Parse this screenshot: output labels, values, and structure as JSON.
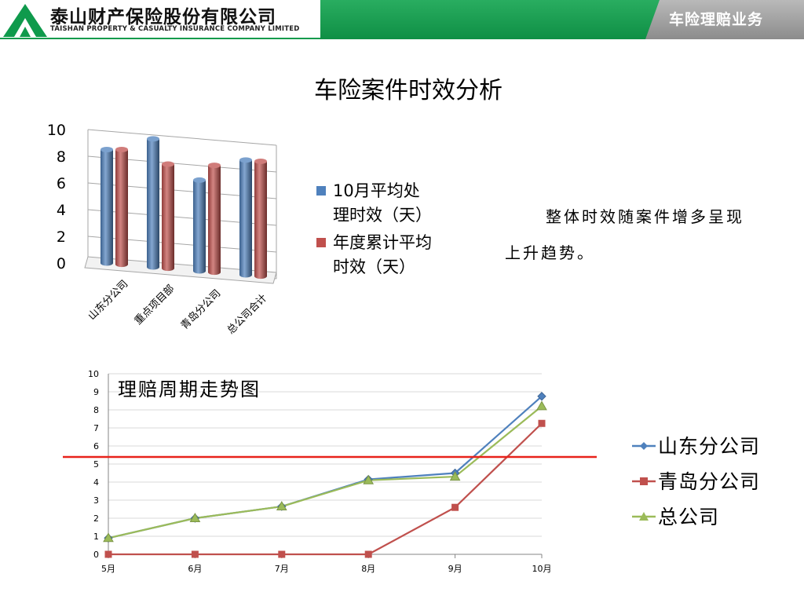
{
  "header": {
    "company_name": "泰山财产保险股份有限公司",
    "company_name_en": "TAISHAN PROPERTY & CASUALTY INSURANCE COMPANY LIMITED",
    "section_label": "车险理赔业务",
    "brand_green": "#0f9a4c",
    "logo_icon": "mountain-logo-icon"
  },
  "page": {
    "title": "车险案件时效分析",
    "summary": "整体时效随案件增多呈现上升趋势。"
  },
  "chart_data": [
    {
      "type": "bar",
      "style": "3d-cylinder",
      "categories": [
        "山东分公司",
        "重点项目部",
        "青岛分公司",
        "总公司合计"
      ],
      "series": [
        {
          "name": "10月平均处理时效（天）",
          "color": "#4f81bd",
          "values": [
            8.5,
            9.6,
            6.8,
            8.6
          ]
        },
        {
          "name": "年度累计平均时效（天）",
          "color": "#c0504d",
          "values": [
            8.6,
            7.8,
            8.0,
            8.6
          ]
        }
      ],
      "ylim": [
        0,
        10
      ],
      "yticks": [
        0,
        2,
        4,
        6,
        8,
        10
      ],
      "grid": true,
      "legend": "right"
    },
    {
      "type": "line",
      "title": "理赔周期走势图",
      "categories": [
        "5月",
        "6月",
        "7月",
        "8月",
        "9月",
        "10月"
      ],
      "series": [
        {
          "name": "山东分公司",
          "color": "#4f81bd",
          "marker": "diamond",
          "values": [
            0.9,
            2.0,
            2.65,
            4.15,
            4.5,
            8.75
          ]
        },
        {
          "name": "青岛分公司",
          "color": "#c0504d",
          "marker": "square",
          "values": [
            0,
            0,
            0,
            0,
            2.6,
            7.25
          ]
        },
        {
          "name": "总公司",
          "color": "#9bbb59",
          "marker": "triangle",
          "values": [
            0.9,
            2.0,
            2.65,
            4.1,
            4.3,
            8.2
          ]
        }
      ],
      "ylim": [
        0,
        10
      ],
      "yticks": [
        0,
        1,
        2,
        3,
        4,
        5,
        6,
        7,
        8,
        9,
        10
      ],
      "reference_line": {
        "value": 5,
        "color": "#e8221b"
      },
      "grid": true,
      "legend": "right"
    }
  ]
}
